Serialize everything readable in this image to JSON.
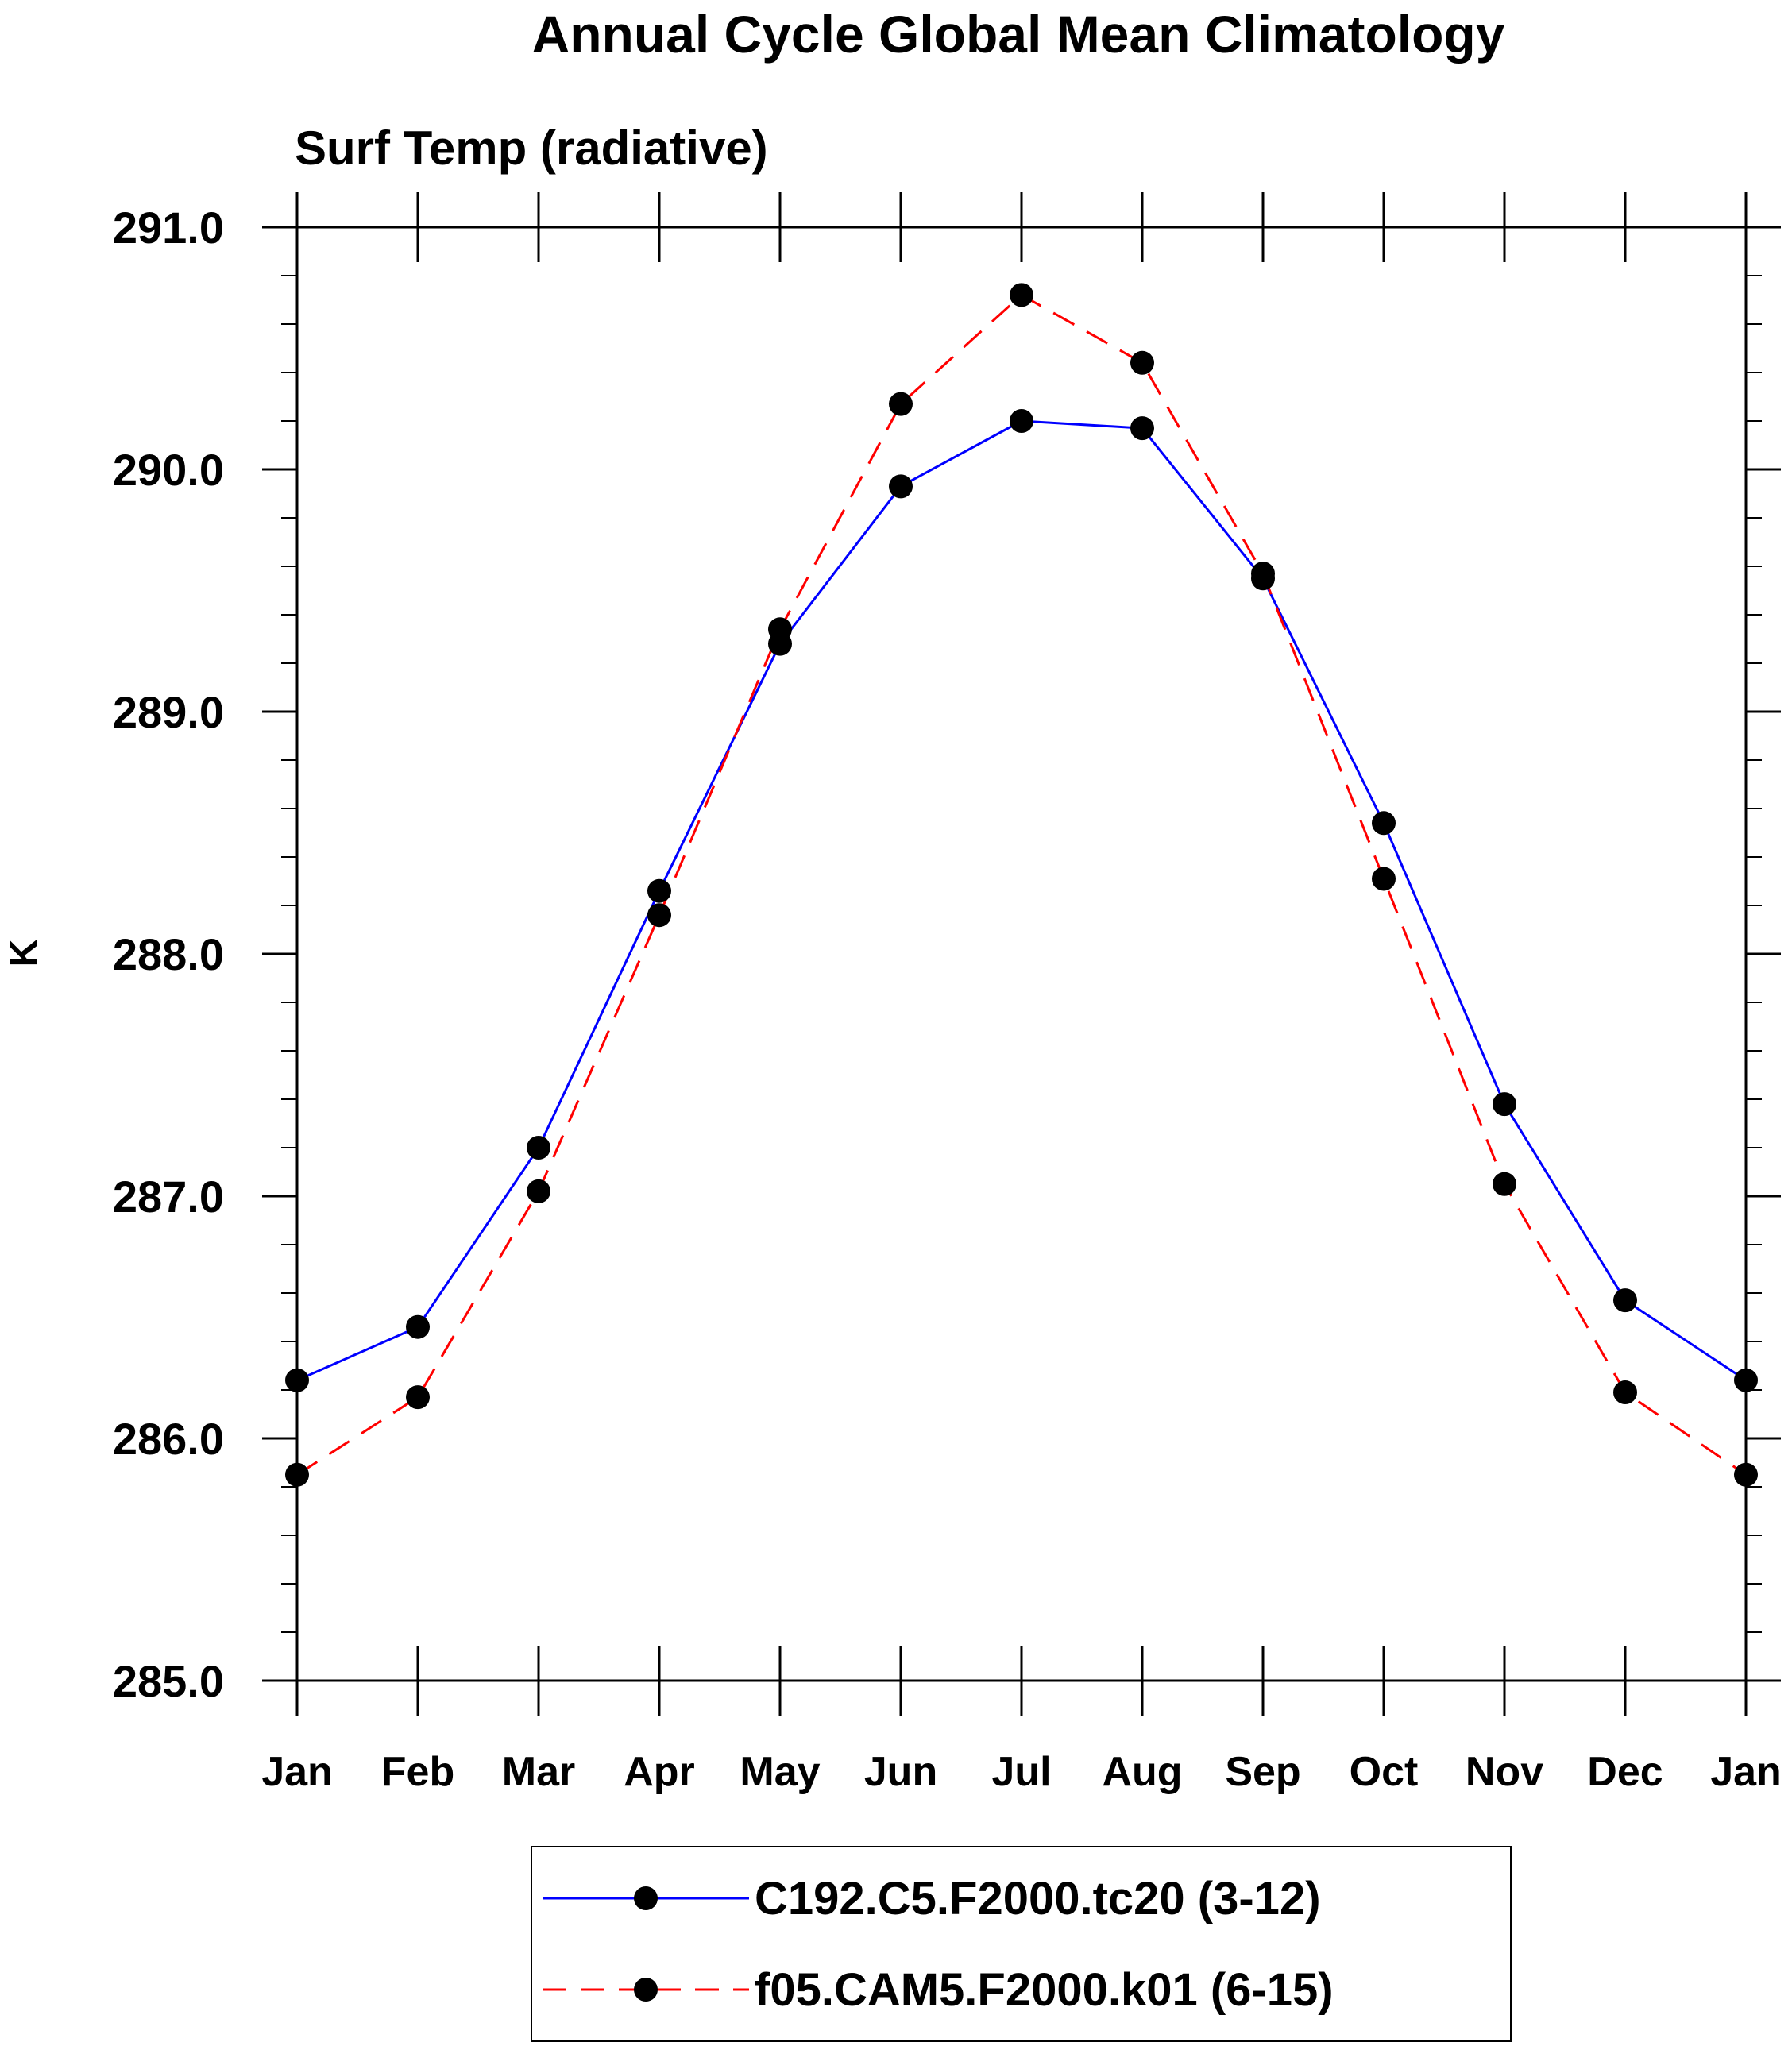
{
  "chart_data": {
    "type": "line",
    "title": "Annual Cycle Global Mean Climatology",
    "subtitle": "Surf Temp (radiative)",
    "xlabel": "",
    "ylabel": "K",
    "categories": [
      "Jan",
      "Feb",
      "Mar",
      "Apr",
      "May",
      "Jun",
      "Jul",
      "Aug",
      "Sep",
      "Oct",
      "Nov",
      "Dec",
      "Jan"
    ],
    "ylim": [
      285.0,
      291.0
    ],
    "yticks": [
      "285.0",
      "286.0",
      "287.0",
      "288.0",
      "289.0",
      "290.0",
      "291.0"
    ],
    "ytick_values": [
      285.0,
      286.0,
      287.0,
      288.0,
      289.0,
      290.0,
      291.0
    ],
    "y_minor_step": 0.2,
    "grid": false,
    "legend_position": "bottom-center",
    "series": [
      {
        "name": "C192.C5.F2000.tc20 (3-12)",
        "color": "#0000ff",
        "line_style": "solid",
        "marker": "filled-circle",
        "marker_color": "#000000",
        "values": [
          286.24,
          286.46,
          287.2,
          288.26,
          289.28,
          289.93,
          290.2,
          290.17,
          289.55,
          288.54,
          287.38,
          286.57,
          286.24
        ]
      },
      {
        "name": "f05.CAM5.F2000.k01 (6-15)",
        "color": "#ff0000",
        "line_style": "dashed",
        "marker": "filled-circle",
        "marker_color": "#000000",
        "values": [
          285.85,
          286.17,
          287.02,
          288.16,
          289.34,
          290.27,
          290.72,
          290.44,
          289.57,
          288.31,
          287.05,
          286.19,
          285.85
        ]
      }
    ]
  }
}
